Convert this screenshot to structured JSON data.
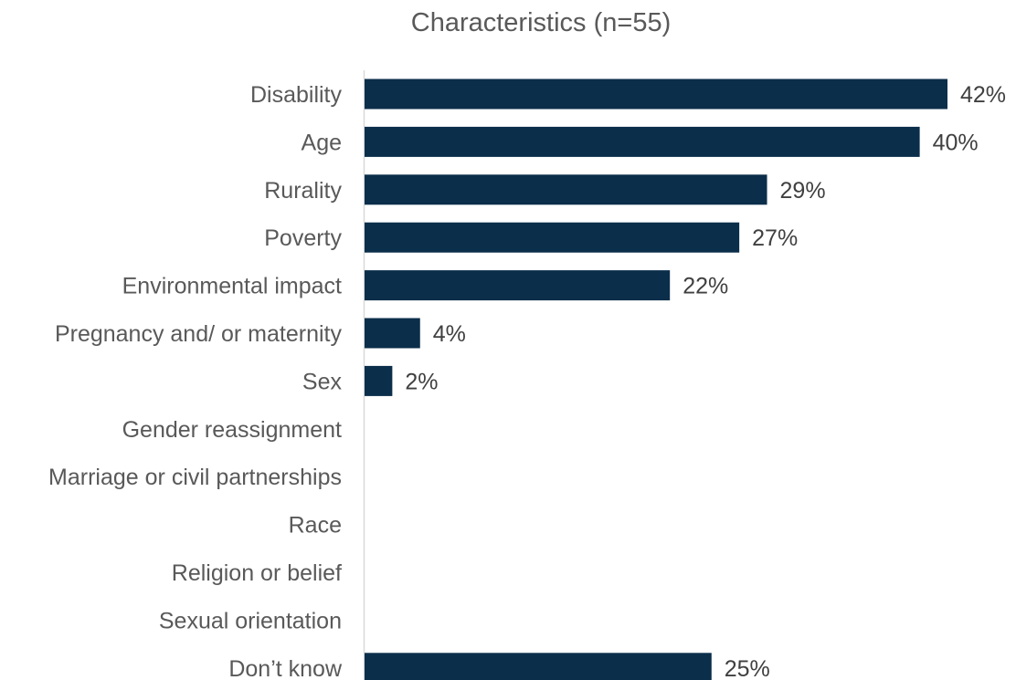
{
  "chart_data": {
    "type": "bar",
    "orientation": "horizontal",
    "title": "Characteristics (n=55)",
    "xlabel": "",
    "ylabel": "",
    "categories": [
      "Disability",
      "Age",
      "Rurality",
      "Poverty",
      "Environmental impact",
      "Pregnancy and/ or maternity",
      "Sex",
      "Gender reassignment",
      "Marriage or civil partnerships",
      "Race",
      "Religion or belief",
      "Sexual orientation",
      "Don’t know"
    ],
    "values": [
      42,
      40,
      29,
      27,
      22,
      4,
      2,
      0,
      0,
      0,
      0,
      0,
      25
    ],
    "value_labels": [
      "42%",
      "40%",
      "29%",
      "27%",
      "22%",
      "4%",
      "2%",
      "",
      "",
      "",
      "",
      "",
      "25%"
    ],
    "value_unit": "%",
    "xlim": [
      0,
      42
    ],
    "grid": false,
    "legend": "none",
    "bar_color": "#0B2E4A"
  }
}
